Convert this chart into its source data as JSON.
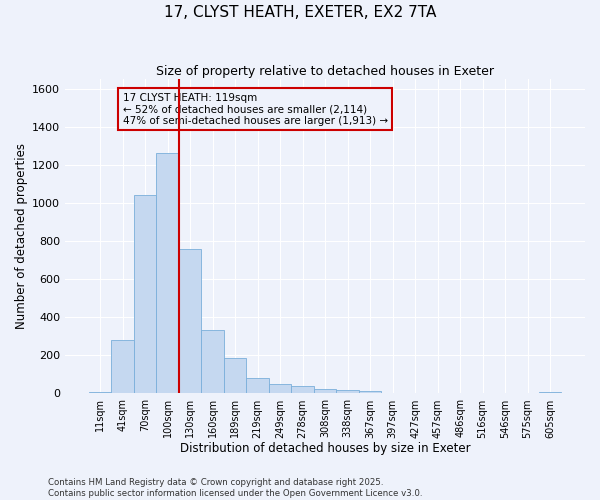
{
  "title_line1": "17, CLYST HEATH, EXETER, EX2 7TA",
  "title_line2": "Size of property relative to detached houses in Exeter",
  "xlabel": "Distribution of detached houses by size in Exeter",
  "ylabel": "Number of detached properties",
  "categories": [
    "11sqm",
    "41sqm",
    "70sqm",
    "100sqm",
    "130sqm",
    "160sqm",
    "189sqm",
    "219sqm",
    "249sqm",
    "278sqm",
    "308sqm",
    "338sqm",
    "367sqm",
    "397sqm",
    "427sqm",
    "457sqm",
    "486sqm",
    "516sqm",
    "546sqm",
    "575sqm",
    "605sqm"
  ],
  "bar_values": [
    10,
    280,
    1040,
    1260,
    760,
    335,
    185,
    80,
    52,
    38,
    25,
    20,
    15,
    0,
    0,
    0,
    0,
    0,
    0,
    0,
    8
  ],
  "bar_color": "#c5d8f0",
  "bar_edge_color": "#7aafda",
  "background_color": "#eef2fb",
  "grid_color": "#ffffff",
  "ylim": [
    0,
    1650
  ],
  "yticks": [
    0,
    200,
    400,
    600,
    800,
    1000,
    1200,
    1400,
    1600
  ],
  "vline_x_idx": 4,
  "vline_color": "#cc0000",
  "annotation_text": "17 CLYST HEATH: 119sqm\n← 52% of detached houses are smaller (2,114)\n47% of semi-detached houses are larger (1,913) →",
  "annotation_box_color": "#cc0000",
  "footnote": "Contains HM Land Registry data © Crown copyright and database right 2025.\nContains public sector information licensed under the Open Government Licence v3.0."
}
